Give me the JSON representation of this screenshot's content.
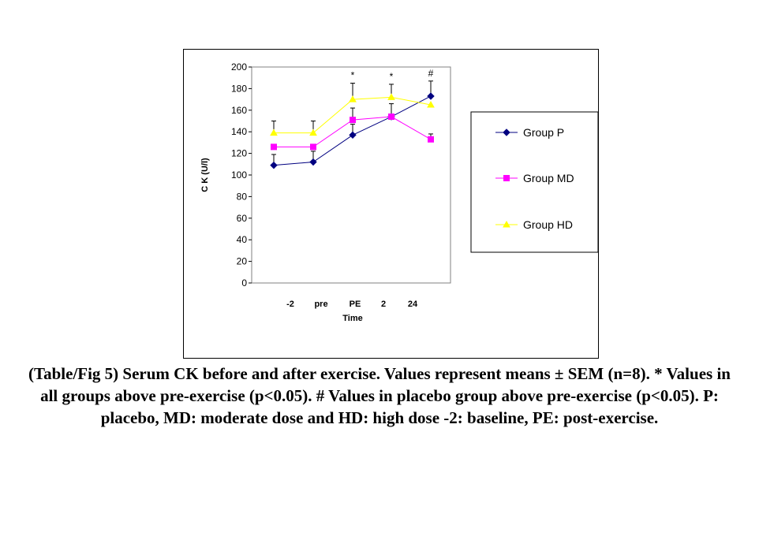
{
  "chart_data": {
    "type": "line",
    "ylabel": "C K (U/l)",
    "xlabel": "Time",
    "categories": [
      "-2",
      "pre",
      "PE",
      "2",
      "24"
    ],
    "ylim": [
      0,
      200
    ],
    "yticks": [
      0,
      20,
      40,
      60,
      80,
      100,
      120,
      140,
      160,
      180,
      200
    ],
    "grid": false,
    "legend_position": "right",
    "series": [
      {
        "name": "Group P",
        "values": [
          109,
          112,
          137,
          154,
          173
        ],
        "errors": [
          10,
          10,
          10,
          12,
          14
        ],
        "color": "#000080",
        "line_color": "#000080",
        "marker": "diamond"
      },
      {
        "name": "Group MD",
        "values": [
          126,
          126,
          151,
          154,
          133
        ],
        "errors": [
          0,
          0,
          11,
          0,
          5
        ],
        "color": "#FF00FF",
        "line_color": "#FF00FF",
        "marker": "square"
      },
      {
        "name": "Group HD",
        "values": [
          139,
          139,
          170,
          172,
          165
        ],
        "errors": [
          11,
          11,
          15,
          12,
          0
        ],
        "color": "#FFFF00",
        "line_color": "#FFFF00",
        "marker": "triangle"
      }
    ],
    "annotations": [
      {
        "category": "PE",
        "text": "*"
      },
      {
        "category": "2",
        "text": "*"
      },
      {
        "category": "24",
        "text": "#"
      }
    ]
  },
  "caption": "(Table/Fig 5) Serum CK before and after exercise. Values represent means ± SEM (n=8). * Values in all groups above pre-exercise (p<0.05). # Values in placebo group above pre-exercise (p<0.05). P: placebo, MD: moderate dose and HD: high dose -2: baseline, PE: post-exercise."
}
